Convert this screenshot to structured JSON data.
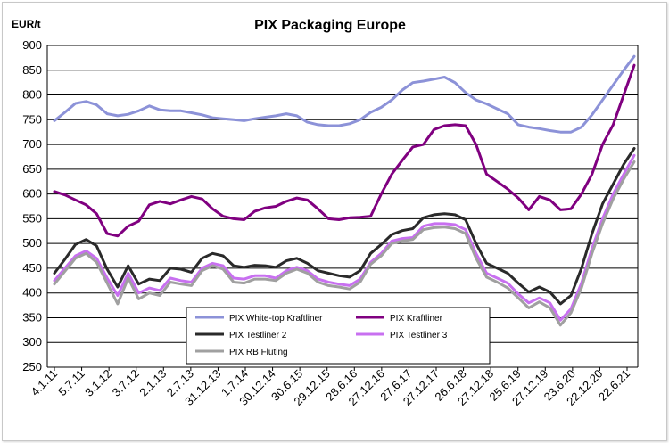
{
  "chart_data": {
    "type": "line",
    "title": "PIX Packaging Europe",
    "ylabel": "EUR/t",
    "xlabel": "",
    "ylim": [
      250,
      900
    ],
    "yticks": [
      250,
      300,
      350,
      400,
      450,
      500,
      550,
      600,
      650,
      700,
      750,
      800,
      850,
      900
    ],
    "grid": "horizontal",
    "legend_position": "bottom-center",
    "x_labels": [
      "4.1.11",
      "5.7.11",
      "3.1.12",
      "3.7.12",
      "2.1.13",
      "2.7.13",
      "31.12.13",
      "1.7.14",
      "30.12.14",
      "30.6.15",
      "29.12.15",
      "28.6.16",
      "27.12.16",
      "27.6.17",
      "27.12.17",
      "26.6.18",
      "27.12.18",
      "25.6.19",
      "27.12.19",
      "23.6.20",
      "22.12.20",
      "22.6.21"
    ],
    "x": [
      2011.0,
      2011.2,
      2011.4,
      2011.6,
      2011.8,
      2012.0,
      2012.2,
      2012.4,
      2012.6,
      2012.8,
      2013.0,
      2013.2,
      2013.4,
      2013.6,
      2013.8,
      2014.0,
      2014.2,
      2014.4,
      2014.6,
      2014.8,
      2015.0,
      2015.2,
      2015.4,
      2015.6,
      2015.8,
      2016.0,
      2016.2,
      2016.4,
      2016.6,
      2016.8,
      2017.0,
      2017.2,
      2017.4,
      2017.6,
      2017.8,
      2018.0,
      2018.2,
      2018.4,
      2018.6,
      2018.8,
      2019.0,
      2019.2,
      2019.4,
      2019.6,
      2019.8,
      2020.0,
      2020.2,
      2020.4,
      2020.6,
      2020.8,
      2021.0,
      2021.2,
      2021.4,
      2021.6,
      2021.8,
      2022.0
    ],
    "series": [
      {
        "name": "PIX White-top Kraftliner",
        "color": "#8c92d8",
        "values": [
          748,
          765,
          783,
          787,
          780,
          762,
          758,
          761,
          768,
          778,
          770,
          768,
          768,
          764,
          760,
          754,
          752,
          750,
          748,
          752,
          755,
          758,
          762,
          758,
          745,
          740,
          738,
          738,
          742,
          750,
          765,
          775,
          790,
          810,
          825,
          828,
          832,
          836,
          825,
          805,
          790,
          782,
          772,
          762,
          740,
          735,
          732,
          728,
          725,
          725,
          735,
          760,
          790,
          820,
          850,
          878
        ]
      },
      {
        "name": "PIX Kraftliner",
        "color": "#800080",
        "values": [
          605,
          598,
          588,
          578,
          560,
          520,
          515,
          535,
          545,
          578,
          585,
          580,
          588,
          595,
          590,
          570,
          555,
          550,
          548,
          565,
          572,
          575,
          585,
          592,
          588,
          570,
          550,
          548,
          552,
          553,
          555,
          600,
          640,
          668,
          695,
          700,
          730,
          738,
          740,
          738,
          700,
          640,
          625,
          610,
          592,
          568,
          595,
          588,
          568,
          570,
          600,
          640,
          700,
          740,
          800,
          860
        ]
      },
      {
        "name": "PIX Testliner 2",
        "color": "#2a2a2a",
        "values": [
          440,
          468,
          498,
          508,
          495,
          448,
          412,
          455,
          418,
          428,
          425,
          450,
          448,
          442,
          470,
          480,
          475,
          455,
          452,
          456,
          455,
          452,
          465,
          470,
          460,
          445,
          440,
          435,
          432,
          445,
          480,
          498,
          518,
          526,
          530,
          552,
          558,
          560,
          558,
          548,
          500,
          460,
          450,
          440,
          420,
          402,
          412,
          402,
          378,
          395,
          450,
          520,
          580,
          620,
          660,
          692
        ]
      },
      {
        "name": "PIX Testliner 3",
        "color": "#c870f0",
        "values": [
          425,
          450,
          475,
          485,
          470,
          430,
          395,
          440,
          400,
          410,
          405,
          430,
          425,
          422,
          450,
          460,
          455,
          430,
          428,
          435,
          435,
          430,
          445,
          452,
          445,
          428,
          422,
          418,
          415,
          428,
          462,
          480,
          505,
          510,
          512,
          535,
          540,
          540,
          538,
          528,
          480,
          440,
          430,
          420,
          398,
          380,
          390,
          380,
          345,
          368,
          420,
          490,
          550,
          600,
          640,
          678
        ]
      },
      {
        "name": "PIX RB Fluting",
        "color": "#a0a0a0",
        "values": [
          418,
          444,
          470,
          480,
          462,
          420,
          378,
          430,
          388,
          400,
          395,
          422,
          418,
          415,
          445,
          455,
          448,
          422,
          420,
          428,
          428,
          425,
          440,
          448,
          440,
          422,
          415,
          412,
          408,
          422,
          458,
          475,
          500,
          505,
          508,
          528,
          532,
          533,
          530,
          520,
          470,
          432,
          422,
          410,
          390,
          370,
          382,
          370,
          335,
          360,
          410,
          480,
          540,
          590,
          630,
          665
        ]
      }
    ]
  }
}
